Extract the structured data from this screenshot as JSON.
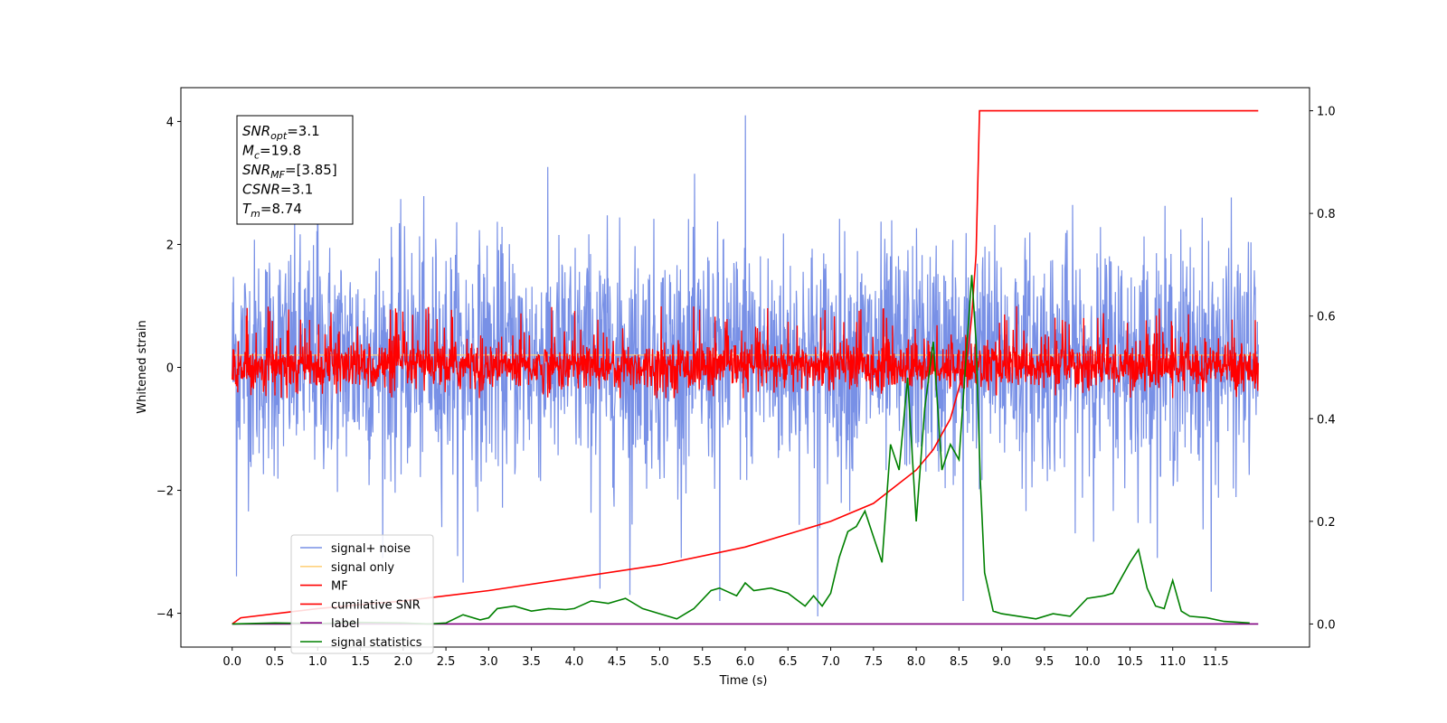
{
  "chart_data": {
    "type": "line",
    "xlabel": "Time (s)",
    "ylabel": "Whitened strain",
    "xlim": [
      -0.6,
      12.6
    ],
    "ylim": [
      -4.55,
      4.55
    ],
    "y2lim": [
      -0.045,
      1.045
    ],
    "x_ticks": [
      "0.0",
      "0.5",
      "1.0",
      "1.5",
      "2.0",
      "2.5",
      "3.0",
      "3.5",
      "4.0",
      "4.5",
      "5.0",
      "5.5",
      "6.0",
      "6.5",
      "7.0",
      "7.5",
      "8.0",
      "8.5",
      "9.0",
      "9.5",
      "10.0",
      "10.5",
      "11.0",
      "11.5"
    ],
    "y_ticks": [
      "4",
      "2",
      "0",
      "−2",
      "−4"
    ],
    "y2_ticks": [
      "1.0",
      "0.8",
      "0.6",
      "0.4",
      "0.2",
      "0.0"
    ],
    "info_box": {
      "snr_opt": {
        "var": "SNR",
        "sub": "opt",
        "value": "=3.1"
      },
      "mc": {
        "var": "M",
        "sub": "c",
        "value": "=19.8"
      },
      "snr_mf": {
        "var": "SNR",
        "sub": "MF",
        "value": "=[3.85]"
      },
      "csnr": {
        "var": "CSNR",
        "sub": "",
        "value": "=3.1"
      },
      "tm": {
        "var": "T",
        "sub": "m",
        "value": "=8.74"
      }
    },
    "series": [
      {
        "name": "signal+ noise",
        "color": "#7890e6",
        "axis": "left",
        "description_values": {
          "x_range": [
            0,
            12
          ],
          "amplitude_range": [
            -3.4,
            4.1
          ],
          "noise_std": 1.0,
          "offset": 0.15
        },
        "spikes": [
          [
            0.05,
            -3.4
          ],
          [
            1.0,
            3.7
          ],
          [
            2.7,
            -3.5
          ],
          [
            4.3,
            -3.6
          ],
          [
            4.65,
            -3.7
          ],
          [
            5.7,
            -3.8
          ],
          [
            6.0,
            4.1
          ],
          [
            6.85,
            -4.05
          ],
          [
            8.55,
            -3.8
          ],
          [
            11.45,
            -3.65
          ]
        ]
      },
      {
        "name": "signal only",
        "color": "#ffd27f",
        "axis": "left",
        "values_note": "flat near 0"
      },
      {
        "name": "MF",
        "color": "#ff0000",
        "axis": "left",
        "amplitude_range": [
          -0.5,
          1.0
        ],
        "noise_std": 0.22
      },
      {
        "name": "cumilative SNR",
        "color": "#ff0000",
        "axis": "right",
        "x": [
          0.0,
          0.1,
          1.0,
          2.0,
          3.0,
          4.0,
          5.0,
          6.0,
          7.0,
          7.5,
          8.0,
          8.2,
          8.4,
          8.5,
          8.6,
          8.65,
          8.7,
          8.74,
          12.0
        ],
        "y": [
          0.0,
          0.012,
          0.03,
          0.045,
          0.065,
          0.09,
          0.115,
          0.15,
          0.2,
          0.235,
          0.3,
          0.34,
          0.4,
          0.46,
          0.52,
          0.6,
          0.72,
          1.0,
          1.0
        ]
      },
      {
        "name": "label",
        "color": "#800080",
        "axis": "right",
        "x": [
          0,
          12
        ],
        "y": [
          0.0,
          0.0
        ]
      },
      {
        "name": "signal statistics",
        "color": "#008000",
        "axis": "right",
        "x": [
          0.0,
          0.5,
          1.0,
          1.5,
          2.0,
          2.3,
          2.5,
          2.7,
          2.9,
          3.0,
          3.1,
          3.3,
          3.5,
          3.7,
          3.9,
          4.0,
          4.2,
          4.4,
          4.5,
          4.6,
          4.8,
          5.0,
          5.2,
          5.4,
          5.6,
          5.7,
          5.9,
          6.0,
          6.1,
          6.3,
          6.5,
          6.7,
          6.8,
          6.9,
          7.0,
          7.1,
          7.2,
          7.3,
          7.4,
          7.5,
          7.6,
          7.7,
          7.8,
          7.9,
          8.0,
          8.1,
          8.2,
          8.3,
          8.4,
          8.5,
          8.6,
          8.65,
          8.7,
          8.75,
          8.8,
          8.9,
          9.0,
          9.2,
          9.4,
          9.6,
          9.8,
          10.0,
          10.2,
          10.3,
          10.4,
          10.5,
          10.6,
          10.7,
          10.8,
          10.9,
          11.0,
          11.1,
          11.2,
          11.4,
          11.6,
          11.9
        ],
        "y": [
          0.0,
          0.002,
          0.001,
          0.003,
          0.002,
          0.0,
          0.002,
          0.018,
          0.008,
          0.012,
          0.03,
          0.035,
          0.025,
          0.03,
          0.028,
          0.03,
          0.045,
          0.04,
          0.045,
          0.05,
          0.03,
          0.02,
          0.01,
          0.03,
          0.065,
          0.07,
          0.055,
          0.08,
          0.065,
          0.07,
          0.06,
          0.035,
          0.055,
          0.035,
          0.06,
          0.13,
          0.18,
          0.19,
          0.22,
          0.17,
          0.12,
          0.35,
          0.3,
          0.48,
          0.2,
          0.42,
          0.55,
          0.3,
          0.35,
          0.32,
          0.56,
          0.68,
          0.55,
          0.28,
          0.1,
          0.025,
          0.02,
          0.015,
          0.01,
          0.02,
          0.015,
          0.05,
          0.055,
          0.06,
          0.09,
          0.12,
          0.145,
          0.07,
          0.035,
          0.03,
          0.085,
          0.025,
          0.015,
          0.012,
          0.005,
          0.002
        ]
      }
    ],
    "legend_position": "lower-left"
  }
}
